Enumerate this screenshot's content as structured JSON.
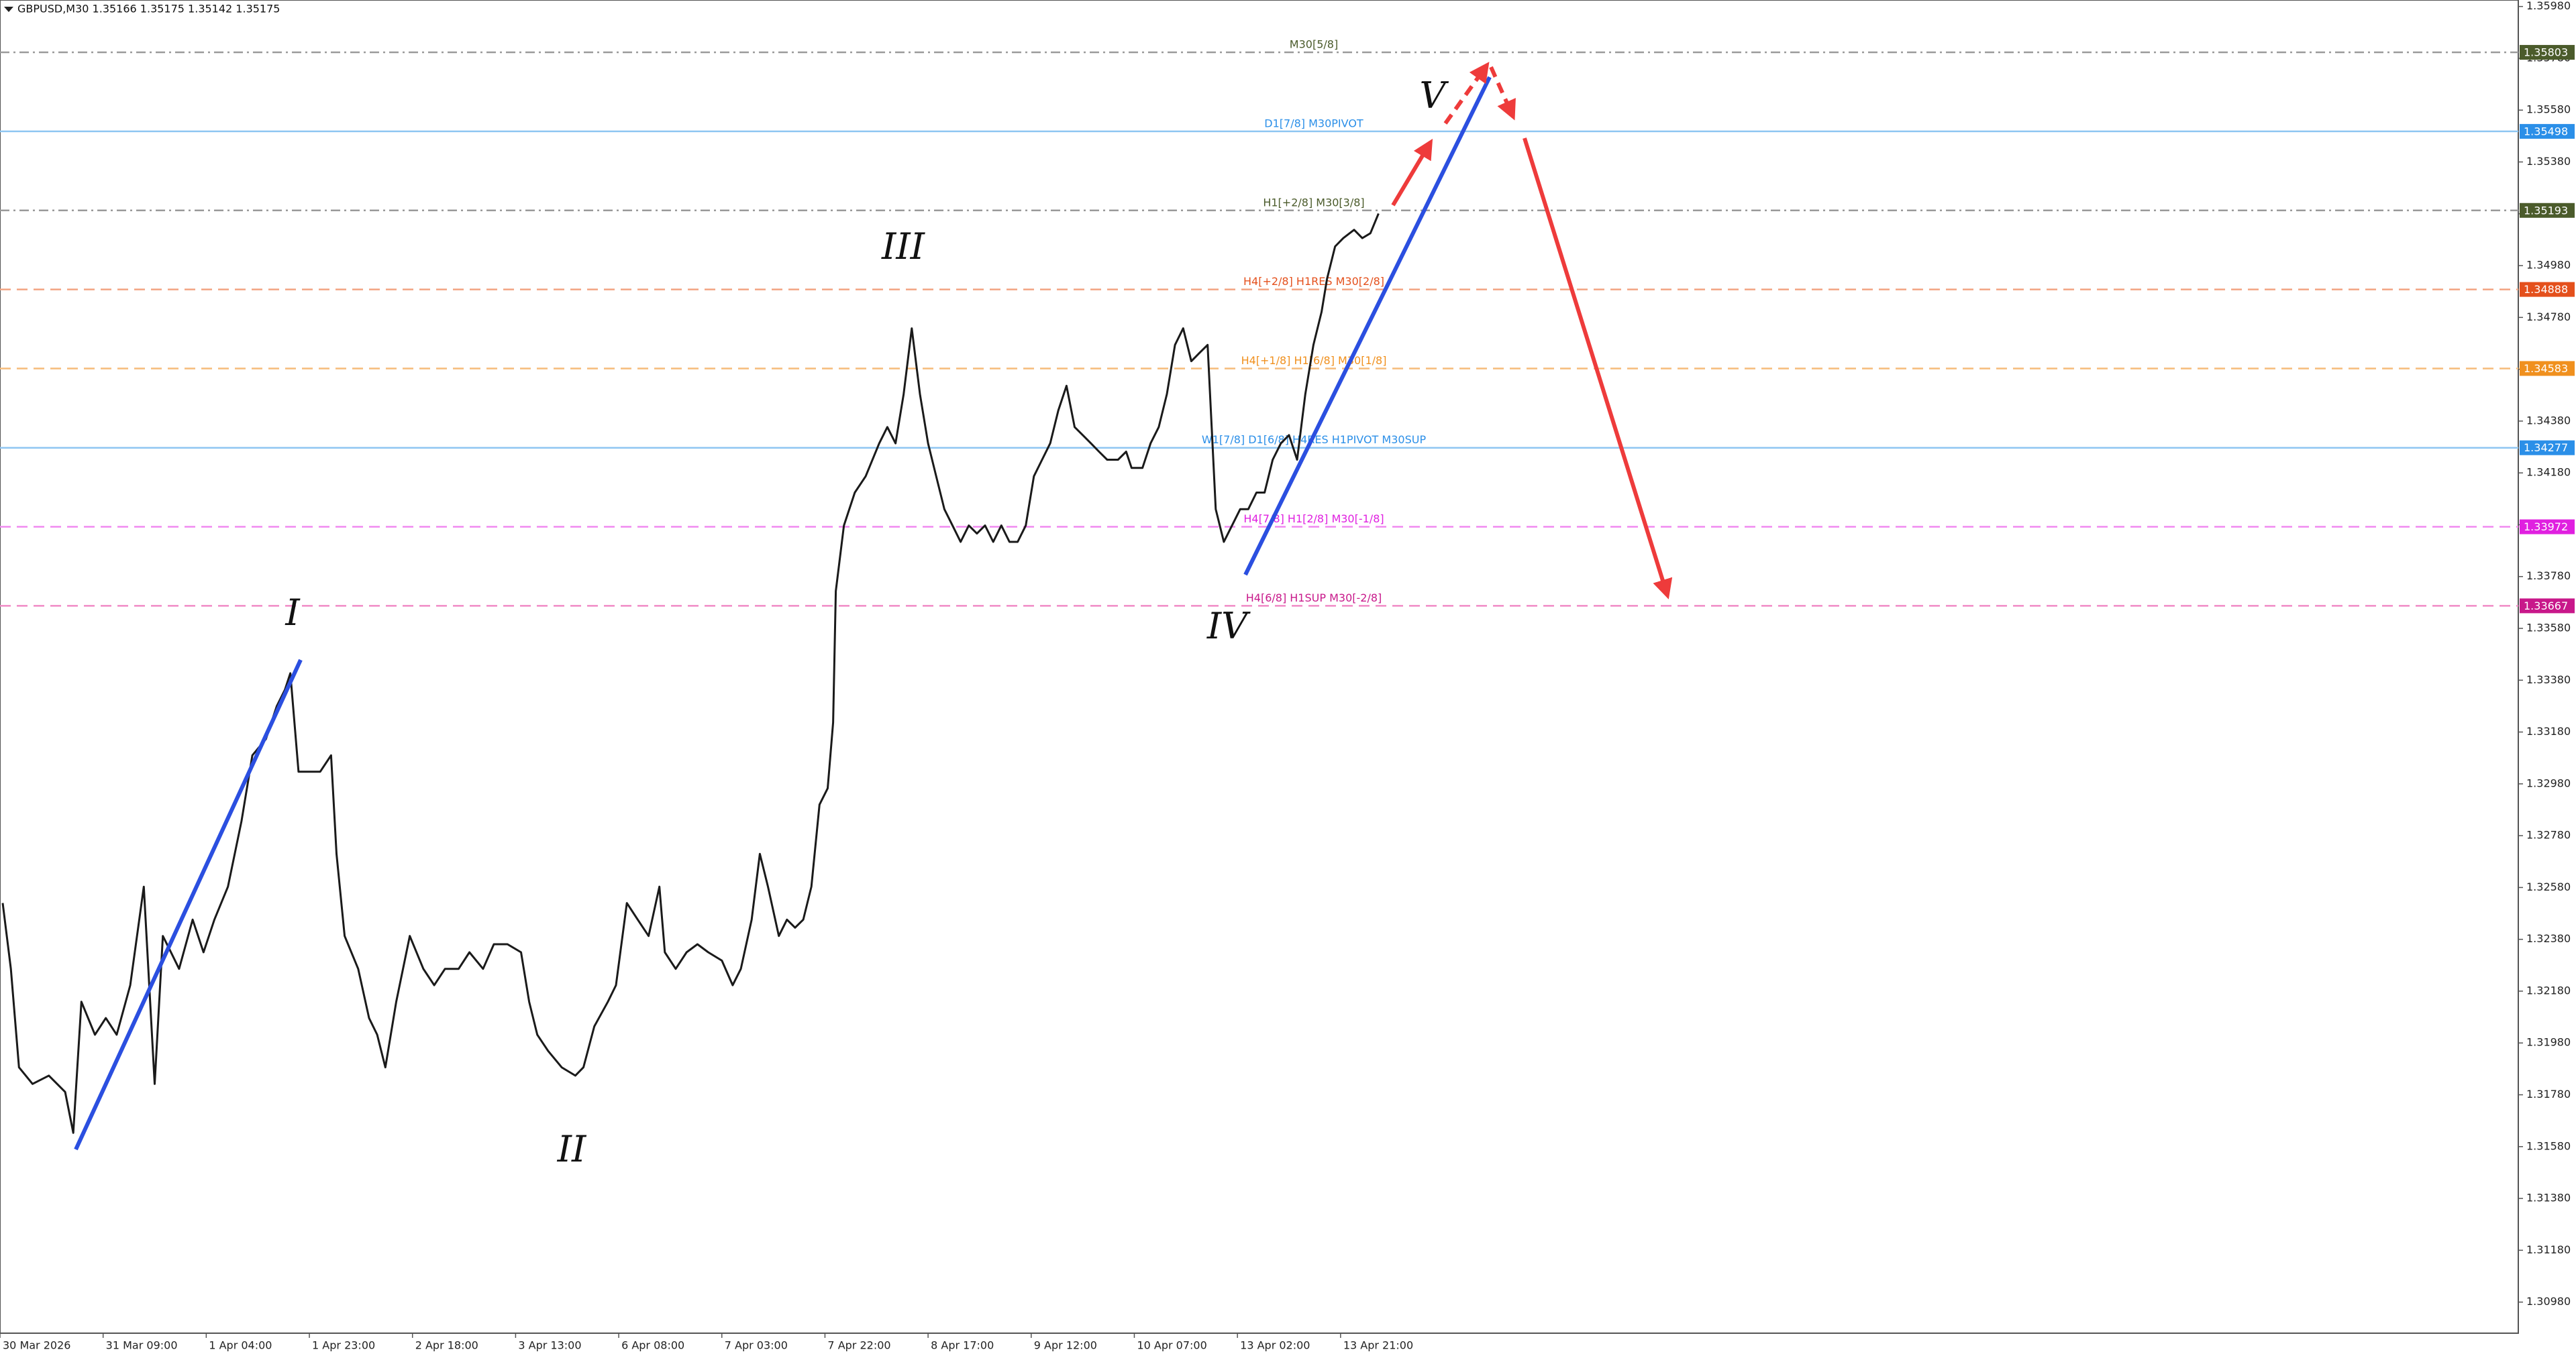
{
  "chart_data": {
    "type": "line",
    "title": "GBPUSD,M30  1.35166 1.35175 1.35142 1.35175",
    "color": "#1a1a1a",
    "grid": true,
    "xlim": [
      0,
      928
    ],
    "ylim": [
      1.3086,
      1.36005
    ],
    "xticks": [
      {
        "value": 0,
        "label": "30 Mar 2026"
      },
      {
        "value": 38,
        "label": "31 Mar 09:00"
      },
      {
        "value": 76,
        "label": "1 Apr 04:00"
      },
      {
        "value": 114,
        "label": "1 Apr 23:00"
      },
      {
        "value": 152,
        "label": "2 Apr 18:00"
      },
      {
        "value": 190,
        "label": "3 Apr 13:00"
      },
      {
        "value": 228,
        "label": "6 Apr 08:00"
      },
      {
        "value": 266,
        "label": "7 Apr 03:00"
      },
      {
        "value": 304,
        "label": "7 Apr 22:00"
      },
      {
        "value": 342,
        "label": "8 Apr 17:00"
      },
      {
        "value": 380,
        "label": "9 Apr 12:00"
      },
      {
        "value": 418,
        "label": "10 Apr 07:00"
      },
      {
        "value": 456,
        "label": "13 Apr 02:00"
      },
      {
        "value": 494,
        "label": "13 Apr 21:00"
      }
    ],
    "yticks": [
      {
        "value": 1.3098,
        "label": "1.30980"
      },
      {
        "value": 1.3118,
        "label": "1.31180"
      },
      {
        "value": 1.3138,
        "label": "1.31380"
      },
      {
        "value": 1.3158,
        "label": "1.31580"
      },
      {
        "value": 1.3178,
        "label": "1.31780"
      },
      {
        "value": 1.3198,
        "label": "1.31980"
      },
      {
        "value": 1.3218,
        "label": "1.32180"
      },
      {
        "value": 1.3238,
        "label": "1.32380"
      },
      {
        "value": 1.3258,
        "label": "1.32580"
      },
      {
        "value": 1.3278,
        "label": "1.32780"
      },
      {
        "value": 1.3298,
        "label": "1.32980"
      },
      {
        "value": 1.3318,
        "label": "1.33180"
      },
      {
        "value": 1.3338,
        "label": "1.33380"
      },
      {
        "value": 1.3358,
        "label": "1.33580"
      },
      {
        "value": 1.3378,
        "label": "1.33780"
      },
      {
        "value": 1.3398,
        "label": "1.33980"
      },
      {
        "value": 1.3418,
        "label": "1.34180"
      },
      {
        "value": 1.3438,
        "label": "1.34380"
      },
      {
        "value": 1.3458,
        "label": "1.34580"
      },
      {
        "value": 1.3478,
        "label": "1.34780"
      },
      {
        "value": 1.3498,
        "label": "1.34980"
      },
      {
        "value": 1.3518,
        "label": "1.35180"
      },
      {
        "value": 1.3538,
        "label": "1.35380"
      },
      {
        "value": 1.3558,
        "label": "1.35580"
      },
      {
        "value": 1.3578,
        "label": "1.35780"
      },
      {
        "value": 1.3598,
        "label": "1.35980"
      }
    ],
    "x": [
      1,
      4,
      7,
      12,
      18,
      24,
      27,
      30,
      35,
      39,
      43,
      48,
      53,
      55,
      57,
      60,
      63,
      66,
      71,
      75,
      79,
      84,
      89,
      93,
      98,
      102,
      105,
      107,
      110,
      113,
      118,
      122,
      124,
      127,
      132,
      136,
      139,
      142,
      146,
      151,
      156,
      160,
      164,
      169,
      173,
      178,
      182,
      187,
      192,
      195,
      198,
      202,
      207,
      212,
      215,
      219,
      224,
      227,
      231,
      235,
      239,
      243,
      245,
      249,
      253,
      257,
      261,
      266,
      270,
      273,
      277,
      280,
      283,
      287,
      290,
      293,
      296,
      299,
      302,
      305,
      307,
      308,
      311,
      315,
      319,
      324,
      327,
      330,
      333,
      336,
      339,
      342,
      345,
      348,
      351,
      354,
      357,
      360,
      363,
      366,
      369,
      372,
      375,
      378,
      381,
      384,
      387,
      390,
      393,
      396,
      399,
      402,
      405,
      408,
      412,
      415,
      417,
      421,
      424,
      427,
      430,
      433,
      436,
      439,
      442,
      445,
      448,
      451,
      454,
      457,
      460,
      463,
      466,
      469,
      472,
      475,
      478,
      481,
      484,
      487,
      489,
      492,
      495,
      499,
      502,
      505,
      508
    ],
    "values": [
      1.3252,
      1.32266,
      1.31886,
      1.31822,
      1.31854,
      1.31791,
      1.31633,
      1.32139,
      1.32012,
      1.32076,
      1.32012,
      1.32203,
      1.32583,
      1.32203,
      1.31822,
      1.32393,
      1.3233,
      1.32266,
      1.32456,
      1.3233,
      1.32456,
      1.32583,
      1.32836,
      1.3309,
      1.33153,
      1.3328,
      1.33343,
      1.33407,
      1.33027,
      1.33027,
      1.33027,
      1.3309,
      1.3271,
      1.32393,
      1.32266,
      1.32076,
      1.32012,
      1.31886,
      1.32139,
      1.32393,
      1.32266,
      1.32203,
      1.32266,
      1.32266,
      1.3233,
      1.32266,
      1.32361,
      1.32361,
      1.3233,
      1.32139,
      1.32012,
      1.31949,
      1.31886,
      1.31854,
      1.31886,
      1.32044,
      1.32139,
      1.32203,
      1.3252,
      1.32456,
      1.32393,
      1.32583,
      1.3233,
      1.32266,
      1.3233,
      1.32361,
      1.3233,
      1.32298,
      1.32203,
      1.32266,
      1.32456,
      1.3271,
      1.32583,
      1.32393,
      1.32456,
      1.32425,
      1.32456,
      1.32583,
      1.329,
      1.32963,
      1.33217,
      1.33724,
      1.33977,
      1.34104,
      1.34167,
      1.34294,
      1.34357,
      1.34294,
      1.34484,
      1.34738,
      1.34484,
      1.34294,
      1.34167,
      1.3404,
      1.33977,
      1.33914,
      1.33977,
      1.33946,
      1.33977,
      1.33914,
      1.33977,
      1.33914,
      1.33914,
      1.33977,
      1.34167,
      1.34231,
      1.34294,
      1.34421,
      1.34516,
      1.34357,
      1.34326,
      1.34294,
      1.34262,
      1.34231,
      1.34231,
      1.34262,
      1.34199,
      1.34199,
      1.34294,
      1.34357,
      1.34484,
      1.34674,
      1.34738,
      1.34611,
      1.34643,
      1.34674,
      1.3404,
      1.33914,
      1.33977,
      1.3404,
      1.3404,
      1.34104,
      1.34104,
      1.34231,
      1.34294,
      1.34326,
      1.34231,
      1.34484,
      1.34674,
      1.34801,
      1.34928,
      1.35054,
      1.35086,
      1.35118,
      1.35086,
      1.35105,
      1.35181
    ],
    "levels": [
      {
        "value": 1.35803,
        "label": "M30[5/8]",
        "color": "#4b5b2b",
        "line_color": "#9a9a9a",
        "style": "dashdot"
      },
      {
        "value": 1.35498,
        "label": "D1[7/8] M30PIVOT",
        "color": "#2b8fe8",
        "line_color": "#8fc6f2",
        "style": "solid"
      },
      {
        "value": 1.35193,
        "label": "H1[+2/8] M30[3/8]",
        "color": "#4b5b2b",
        "line_color": "#9a9a9a",
        "style": "dashdot"
      },
      {
        "value": 1.34888,
        "label": "H4[+2/8] H1RES M30[2/8]",
        "color": "#e4501c",
        "line_color": "#f2a482",
        "style": "dashed"
      },
      {
        "value": 1.34583,
        "label": "H4[+1/8] H1[6/8] M30[1/8]",
        "color": "#f0901e",
        "line_color": "#f6bb7a",
        "style": "dashed"
      },
      {
        "value": 1.34277,
        "label": "W1[7/8] D1[6/8] H4RES H1PIVOT M30SUP",
        "color": "#2b8fe8",
        "line_color": "#8fc6f2",
        "style": "solid"
      },
      {
        "value": 1.33972,
        "label": "H4[7/8] H1[2/8] M30[-1/8]",
        "color": "#e020e0",
        "line_color": "#f08af0",
        "style": "dashed"
      },
      {
        "value": 1.33667,
        "label": "H4[6/8] H1SUP M30[-2/8]",
        "color": "#c8188a",
        "line_color": "#f08ac6",
        "style": "dashed"
      }
    ],
    "annotations": [
      {
        "text": "I"
      },
      {
        "text": "II"
      },
      {
        "text": "III"
      },
      {
        "text": "IV"
      },
      {
        "text": "V"
      }
    ]
  }
}
